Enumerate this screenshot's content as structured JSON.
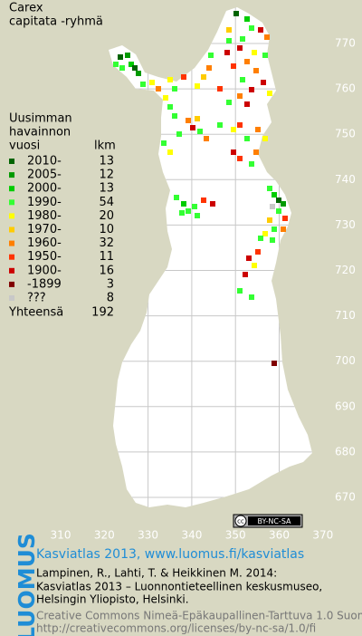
{
  "title": [
    "Carex",
    "capitata -ryhmä"
  ],
  "legend": {
    "heading": [
      "Uusimman",
      "havainnon",
      "vuosi"
    ],
    "count_heading": "lkm",
    "rows": [
      {
        "label": "2010-",
        "count": 13,
        "color": "#006400"
      },
      {
        "label": "2005-",
        "count": 12,
        "color": "#009a00"
      },
      {
        "label": "2000-",
        "count": 13,
        "color": "#00cc00"
      },
      {
        "label": "1990-",
        "count": 54,
        "color": "#33ff33"
      },
      {
        "label": "1980-",
        "count": 20,
        "color": "#ffff00"
      },
      {
        "label": "1970-",
        "count": 10,
        "color": "#ffcc00"
      },
      {
        "label": "1960-",
        "count": 32,
        "color": "#ff7f00"
      },
      {
        "label": "1950-",
        "count": 11,
        "color": "#ff3300"
      },
      {
        "label": "1900-",
        "count": 16,
        "color": "#cc0000"
      },
      {
        "label": "-1899",
        "count": 3,
        "color": "#800000"
      },
      {
        "label": "???",
        "count": 8,
        "color": "#c8c8c8"
      }
    ],
    "total_label": "Yhteensä",
    "total": 192
  },
  "grid": {
    "north": [
      770,
      760,
      750,
      740,
      730,
      720,
      710,
      700,
      690,
      680,
      670
    ],
    "east": [
      310,
      320,
      330,
      340,
      350,
      360,
      370
    ]
  },
  "license_badge": {
    "icon": "cc",
    "text": "BY-NC-SA"
  },
  "logo": "LUOMUS",
  "footer": {
    "link": "Kasviatlas 2013, www.luomus.fi/kasviatlas",
    "citation": [
      "Lampinen, R., Lahti, T. & Heikkinen M. 2014:",
      "Kasviatlas 2013 – Luonnontieteellinen keskusmuseo,",
      "Helsingin Yliopisto, Helsinki."
    ],
    "license": [
      "Creative Commons Nimeä-Epäkaupallinen-Tarttuva 1.0 Suomi",
      "http://creativecommons.org/licenses/by-nc-sa/1.0/fi"
    ]
  }
}
